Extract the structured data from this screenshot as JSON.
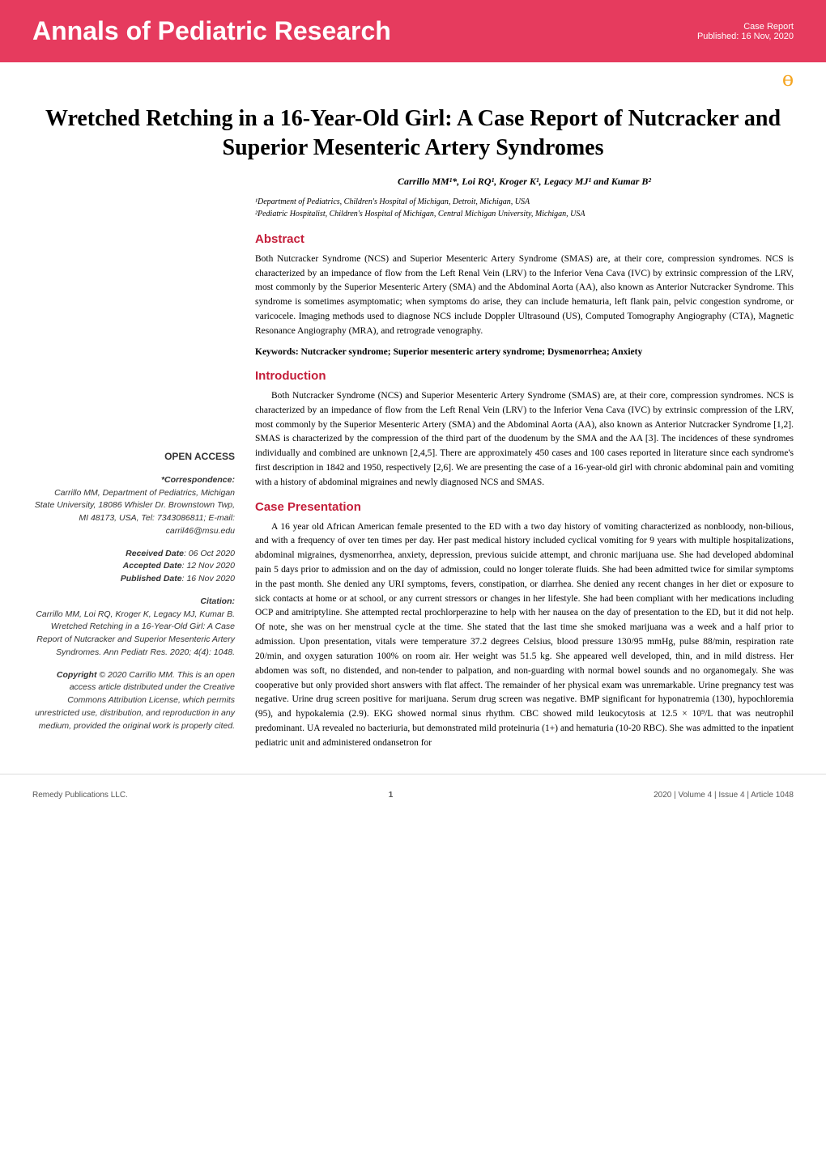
{
  "header": {
    "journal_title": "Annals of Pediatric Research",
    "article_type": "Case Report",
    "published": "Published: 16 Nov, 2020"
  },
  "article": {
    "title": "Wretched Retching in a 16-Year-Old Girl: A Case Report of Nutcracker and Superior Mesenteric Artery Syndromes",
    "authors": "Carrillo MM¹*, Loi RQ¹, Kroger K¹, Legacy MJ¹ and Kumar B²",
    "affiliation1": "¹Department of Pediatrics, Children's Hospital of Michigan, Detroit, Michigan, USA",
    "affiliation2": "²Pediatric Hospitalist, Children's Hospital of Michigan, Central Michigan University, Michigan, USA"
  },
  "sections": {
    "abstract_heading": "Abstract",
    "abstract_text": "Both Nutcracker Syndrome (NCS) and Superior Mesenteric Artery Syndrome (SMAS) are, at their core, compression syndromes. NCS is characterized by an impedance of flow from the Left Renal Vein (LRV) to the Inferior Vena Cava (IVC) by extrinsic compression of the LRV, most commonly by the Superior Mesenteric Artery (SMA) and the Abdominal Aorta (AA), also known as Anterior Nutcracker Syndrome. This syndrome is sometimes asymptomatic; when symptoms do arise, they can include hematuria, left flank pain, pelvic congestion syndrome, or varicocele. Imaging methods used to diagnose NCS include Doppler Ultrasound (US), Computed Tomography Angiography (CTA), Magnetic Resonance Angiography (MRA), and retrograde venography.",
    "keywords": "Keywords: Nutcracker syndrome; Superior mesenteric artery syndrome; Dysmenorrhea; Anxiety",
    "intro_heading": "Introduction",
    "intro_text": "Both Nutcracker Syndrome (NCS) and Superior Mesenteric Artery Syndrome (SMAS) are, at their core, compression syndromes. NCS is characterized by an impedance of flow from the Left Renal Vein (LRV) to the Inferior Vena Cava (IVC) by extrinsic compression of the LRV, most commonly by the Superior Mesenteric Artery (SMA) and the Abdominal Aorta (AA), also known as Anterior Nutcracker Syndrome [1,2]. SMAS is characterized by the compression of the third part of the duodenum by the SMA and the AA [3]. The incidences of these syndromes individually and combined are unknown [2,4,5]. There are approximately 450 cases and 100 cases reported in literature since each syndrome's first description in 1842 and 1950, respectively [2,6]. We are presenting the case of a 16-year-old girl with chronic abdominal pain and vomiting with a history of abdominal migraines and newly diagnosed NCS and SMAS.",
    "case_heading": "Case Presentation",
    "case_text": "A 16 year old African American female presented to the ED with a two day history of vomiting characterized as nonbloody, non-bilious, and with a frequency of over ten times per day. Her past medical history included cyclical vomiting for 9 years with multiple hospitalizations, abdominal migraines, dysmenorrhea, anxiety, depression, previous suicide attempt, and chronic marijuana use. She had developed abdominal pain 5 days prior to admission and on the day of admission, could no longer tolerate fluids. She had been admitted twice for similar symptoms in the past month. She denied any URI symptoms, fevers, constipation, or diarrhea. She denied any recent changes in her diet or exposure to sick contacts at home or at school, or any current stressors or changes in her lifestyle. She had been compliant with her medications including OCP and amitriptyline. She attempted rectal prochlorperazine to help with her nausea on the day of presentation to the ED, but it did not help. Of note, she was on her menstrual cycle at the time. She stated that the last time she smoked marijuana was a week and a half prior to admission. Upon presentation, vitals were temperature 37.2 degrees Celsius, blood pressure 130/95 mmHg, pulse 88/min, respiration rate 20/min, and oxygen saturation 100% on room air. Her weight was 51.5 kg. She appeared well developed, thin, and in mild distress. Her abdomen was soft, no distended, and non-tender to palpation, and non-guarding with normal bowel sounds and no organomegaly. She was cooperative but only provided short answers with flat affect. The remainder of her physical exam was unremarkable. Urine pregnancy test was negative. Urine drug screen positive for marijuana. Serum drug screen was negative. BMP significant for hyponatremia (130), hypochloremia (95), and hypokalemia (2.9). EKG showed normal sinus rhythm. CBC showed mild leukocytosis at 12.5 × 10⁹/L that was neutrophil predominant. UA revealed no bacteriuria, but demonstrated mild proteinuria (1+) and hematuria (10-20 RBC). She was admitted to the inpatient pediatric unit and administered ondansetron for"
  },
  "sidebar": {
    "open_access": "OPEN ACCESS",
    "correspondence_label": "*Correspondence:",
    "correspondence_text": "Carrillo MM, Department of Pediatrics, Michigan State University, 18086 Whisler Dr. Brownstown Twp, MI 48173, USA, Tel: 7343086811; E-mail: carril46@msu.edu",
    "received_label": "Received Date",
    "received_value": ": 06 Oct 2020",
    "accepted_label": "Accepted Date",
    "accepted_value": ": 12 Nov 2020",
    "published_label": "Published Date",
    "published_value": ": 16 Nov 2020",
    "citation_label": "Citation:",
    "citation_text": "Carrillo MM, Loi RQ, Kroger K, Legacy MJ, Kumar B. Wretched Retching in a 16-Year-Old Girl: A Case Report of Nutcracker and Superior Mesenteric Artery Syndromes. Ann Pediatr Res. 2020; 4(4): 1048.",
    "copyright_label": "Copyright",
    "copyright_text": " © 2020 Carrillo MM. This is an open access article distributed under the Creative Commons Attribution License, which permits unrestricted use, distribution, and reproduction in any medium, provided the original work is properly cited."
  },
  "footer": {
    "publisher": "Remedy Publications LLC.",
    "page_number": "1",
    "issue": "2020 | Volume 4 | Issue 4 | Article 1048"
  },
  "colors": {
    "brand_red": "#e63b5e",
    "heading_red": "#c41e3a",
    "icon_orange": "#f5a623",
    "text_black": "#000000",
    "text_gray": "#555555"
  }
}
